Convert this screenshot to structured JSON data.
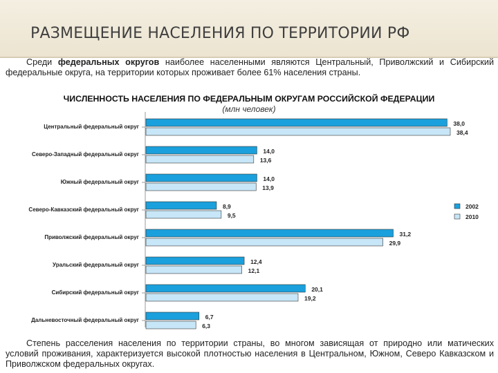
{
  "slide": {
    "title": "РАЗМЕЩЕНИЕ НАСЕЛЕНИЯ ПО ТЕРРИТОРИИ РФ"
  },
  "intro": {
    "before": "Среди ",
    "bold": "федеральных округов",
    "after": " наиболее населенными являются Центральный, Приволжский и Сибирский федеральные округа, на территории которых проживает более 61% населения страны."
  },
  "footer": {
    "text": "Степень расселения населения по территории страны, во многом зависящая от природно или матических условий проживания, характеризуется высокой плотностью населения в Центральном, Южном, Северо Кавказском и Приволжском федеральных округах."
  },
  "chart_data": {
    "type": "bar",
    "orientation": "horizontal",
    "title": "ЧИСЛЕННОСТЬ НАСЕЛЕНИЯ ПО ФЕДЕРАЛЬНЫМ ОКРУГАМ РОССИЙСКОЙ ФЕДЕРАЦИИ",
    "subtitle": "(млн человек)",
    "categories": [
      "Центральный федеральный округ",
      "Северо-Западный федеральный округ",
      "Южный федеральный округ",
      "Северо-Кавказский федеральный округ",
      "Приволжский федеральный округ",
      "Уральский федеральный округ",
      "Сибирский федеральный округ",
      "Дальневосточный федеральный округ"
    ],
    "series": [
      {
        "name": "2002",
        "color": "#1aa0dc",
        "values": [
          38.0,
          14.0,
          14.0,
          8.9,
          31.2,
          12.4,
          20.1,
          6.7
        ],
        "labels": [
          "38,0",
          "14,0",
          "14,0",
          "8,9",
          "31,2",
          "12,4",
          "20,1",
          "6,7"
        ]
      },
      {
        "name": "2010",
        "color": "#c7e6f7",
        "values": [
          38.4,
          13.6,
          13.9,
          9.5,
          29.9,
          12.1,
          19.2,
          6.3
        ],
        "labels": [
          "38,4",
          "13,6",
          "13,9",
          "9,5",
          "29,9",
          "12,1",
          "19,2",
          "6,3"
        ]
      }
    ],
    "xlim": [
      0,
      38.4
    ],
    "legend": "right",
    "grid": false
  }
}
